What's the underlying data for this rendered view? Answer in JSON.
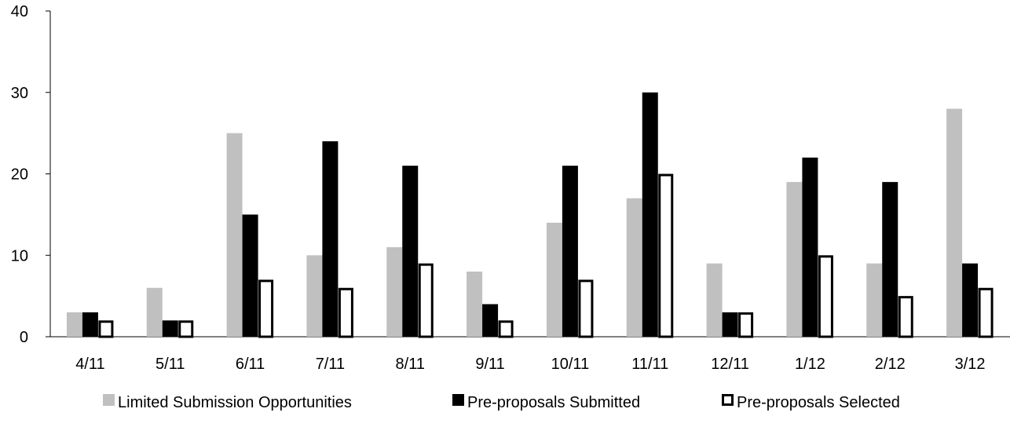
{
  "chart_data": {
    "type": "bar",
    "title": "",
    "xlabel": "",
    "ylabel": "",
    "categories": [
      "4/11",
      "5/11",
      "6/11",
      "7/11",
      "8/11",
      "9/11",
      "10/11",
      "11/11",
      "12/11",
      "1/12",
      "2/12",
      "3/12"
    ],
    "series": [
      {
        "name": "Limited Submission Opportunities",
        "values": [
          3,
          6,
          25,
          10,
          11,
          8,
          14,
          17,
          9,
          19,
          9,
          28
        ],
        "fill": "#c0c0c0",
        "stroke": "none"
      },
      {
        "name": "Pre-proposals Submitted",
        "values": [
          3,
          2,
          15,
          24,
          21,
          4,
          21,
          30,
          3,
          22,
          19,
          9
        ],
        "fill": "#000000",
        "stroke": "none"
      },
      {
        "name": "Pre-proposals Selected",
        "values": [
          2,
          2,
          7,
          6,
          9,
          2,
          7,
          20,
          3,
          10,
          5,
          6
        ],
        "fill": "#ffffff",
        "stroke": "#000000"
      }
    ],
    "ylim": [
      0,
      40
    ],
    "yticks": [
      0,
      10,
      20,
      30,
      40
    ],
    "grid": false,
    "legend_position": "bottom"
  }
}
